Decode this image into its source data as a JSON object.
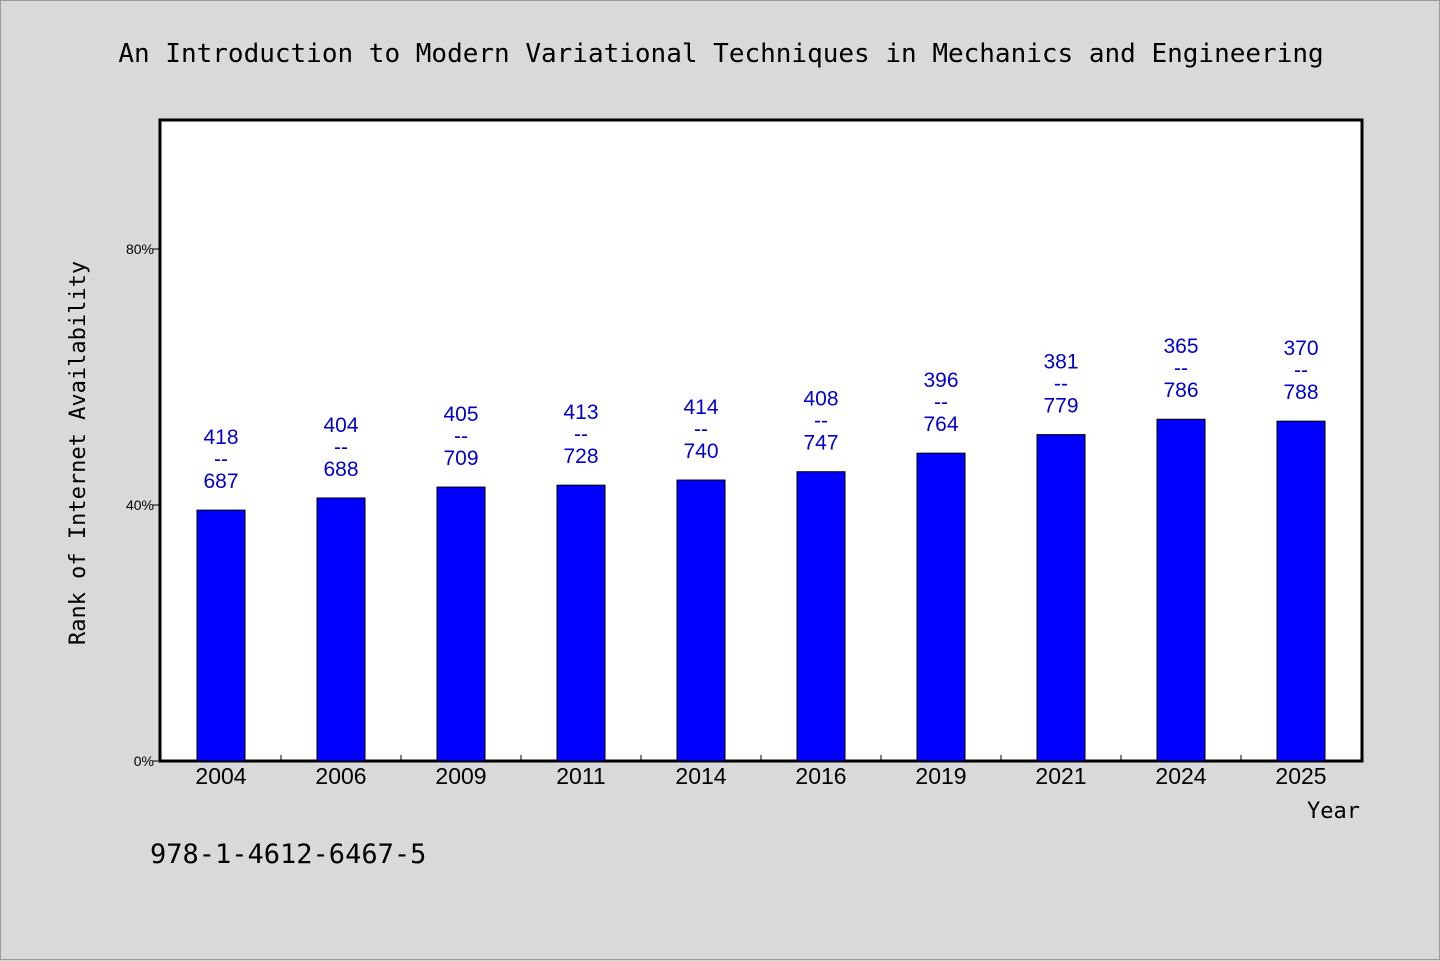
{
  "chart_data": {
    "type": "bar",
    "title": "An Introduction to Modern Variational Techniques in Mechanics and Engineering",
    "xlabel": "Year",
    "ylabel": "Rank of Internet Availability",
    "caption": "978-1-4612-6467-5",
    "categories": [
      "2004",
      "2006",
      "2009",
      "2011",
      "2014",
      "2016",
      "2019",
      "2021",
      "2024",
      "2025"
    ],
    "values": [
      39.2,
      41.1,
      42.8,
      43.1,
      43.9,
      45.2,
      48.1,
      51.0,
      53.4,
      53.1
    ],
    "data_labels": [
      {
        "top": "418",
        "mid": "--",
        "bottom": "687"
      },
      {
        "top": "404",
        "mid": "--",
        "bottom": "688"
      },
      {
        "top": "405",
        "mid": "--",
        "bottom": "709"
      },
      {
        "top": "413",
        "mid": "--",
        "bottom": "728"
      },
      {
        "top": "414",
        "mid": "--",
        "bottom": "740"
      },
      {
        "top": "408",
        "mid": "--",
        "bottom": "747"
      },
      {
        "top": "396",
        "mid": "--",
        "bottom": "764"
      },
      {
        "top": "381",
        "mid": "--",
        "bottom": "779"
      },
      {
        "top": "365",
        "mid": "--",
        "bottom": "786"
      },
      {
        "top": "370",
        "mid": "--",
        "bottom": "788"
      }
    ],
    "ylim": [
      0,
      100
    ],
    "yticks": [
      {
        "value": 0,
        "label": "0%"
      },
      {
        "value": 40,
        "label": "40%"
      },
      {
        "value": 80,
        "label": "80%"
      }
    ],
    "grid": false,
    "colors": {
      "bar": "#0000ff",
      "label": "#0000cc",
      "plot_bg": "#ffffff",
      "page_bg": "#d9d9d9"
    }
  }
}
